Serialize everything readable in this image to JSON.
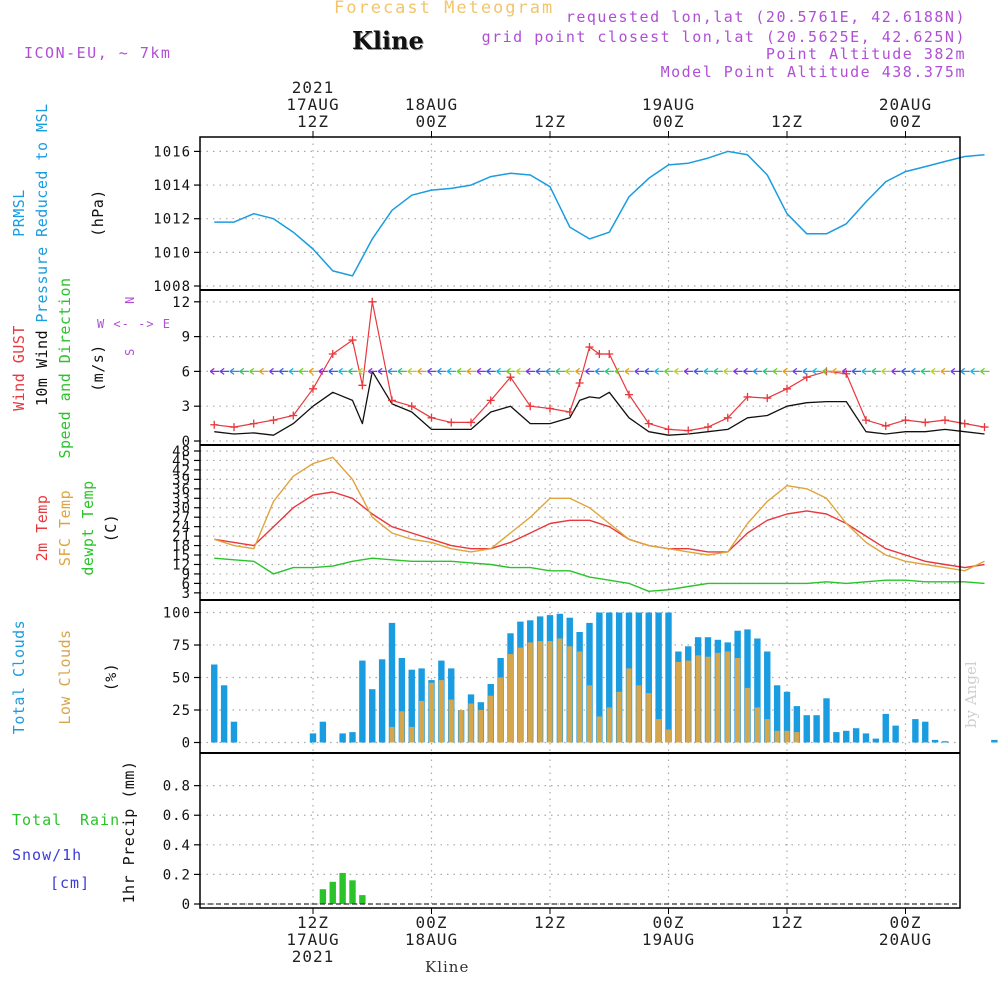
{
  "header": {
    "title": "Forecast Meteogram",
    "location": "Kline",
    "model": "ICON-EU, ~ 7km",
    "requested": "requested lon,lat (20.5761E, 42.6188N)",
    "gridpoint": "grid point closest lon,lat (20.5625E, 42.625N)",
    "point_alt": "Point Altitude 382m",
    "model_alt": "Model Point Altitude 438.375m"
  },
  "footer": {
    "location": "Kline",
    "watermark": "by Angel"
  },
  "colors": {
    "pressure": "#1a9ce0",
    "gust": "#e8383d",
    "wind10": "#111111",
    "temp2m": "#e8383d",
    "sfc": "#e0a43c",
    "dewpt": "#2ac42a",
    "total_clouds": "#1a9ce0",
    "low_clouds": "#d6a64d",
    "rain": "#2ac42a",
    "snow": "#3b3bdc"
  },
  "chart_data": [
    {
      "type": "line",
      "panel": "pressure",
      "ylabel": [
        "PRMSL",
        "Pressure Reduced to MSL",
        "(hPa)"
      ],
      "ylim": [
        1008,
        1016.5
      ],
      "yticks": [
        1008,
        1010,
        1012,
        1014,
        1016
      ],
      "time_axis": {
        "start": "2021-08-17T02Z",
        "end": "2021-08-20T08Z",
        "top_labels": [
          [
            "2021",
            "17AUG",
            "12Z"
          ],
          [
            "",
            "18AUG",
            "00Z"
          ],
          [
            "",
            "",
            "12Z"
          ],
          [
            "",
            "19AUG",
            "00Z"
          ],
          [
            "",
            "",
            "12Z"
          ],
          [
            "",
            "20AUG",
            "00Z"
          ]
        ],
        "bottom_labels": [
          [
            "12Z",
            "17AUG",
            "2021"
          ],
          [
            "00Z",
            "18AUG",
            ""
          ],
          [
            "12Z",
            "",
            ""
          ],
          [
            "00Z",
            "19AUG",
            ""
          ],
          [
            "12Z",
            "",
            ""
          ],
          [
            "00Z",
            "20AUG",
            ""
          ]
        ]
      },
      "series": [
        {
          "name": "PRMSL",
          "x": [
            "17AUG 02Z",
            "17AUG 04Z",
            "17AUG 06Z",
            "17AUG 08Z",
            "17AUG 10Z",
            "17AUG 12Z",
            "17AUG 14Z",
            "17AUG 16Z",
            "17AUG 18Z",
            "17AUG 20Z",
            "17AUG 22Z",
            "18AUG 00Z",
            "18AUG 02Z",
            "18AUG 04Z",
            "18AUG 06Z",
            "18AUG 08Z",
            "18AUG 10Z",
            "18AUG 12Z",
            "18AUG 14Z",
            "18AUG 16Z",
            "18AUG 18Z",
            "18AUG 20Z",
            "18AUG 22Z",
            "19AUG 00Z",
            "19AUG 02Z",
            "19AUG 04Z",
            "19AUG 06Z",
            "19AUG 08Z",
            "19AUG 10Z",
            "19AUG 12Z",
            "19AUG 14Z",
            "19AUG 16Z",
            "19AUG 18Z",
            "19AUG 20Z",
            "19AUG 22Z",
            "20AUG 00Z",
            "20AUG 02Z",
            "20AUG 04Z",
            "20AUG 06Z",
            "20AUG 08Z"
          ],
          "values": [
            1011.8,
            1011.8,
            1012.3,
            1012,
            1011.2,
            1010.2,
            1008.9,
            1008.6,
            1010.8,
            1012.5,
            1013.4,
            1013.7,
            1013.8,
            1014,
            1014.5,
            1014.7,
            1014.6,
            1013.9,
            1011.5,
            1010.8,
            1011.2,
            1013.3,
            1014.4,
            1015.2,
            1015.3,
            1015.6,
            1016,
            1015.8,
            1014.6,
            1012.3,
            1011.1,
            1011.1,
            1011.7,
            1013,
            1014.2,
            1014.8,
            1015.1,
            1015.4,
            1015.7,
            1015.8
          ]
        }
      ]
    },
    {
      "type": "line",
      "panel": "wind",
      "ylabel": [
        "Wind GUST",
        "10m Wind",
        "Speed and Direction",
        "(m/s)"
      ],
      "compass": [
        "N",
        "W <- -> E",
        "S"
      ],
      "ylim": [
        0,
        12.5
      ],
      "yticks": [
        0,
        3,
        6,
        9,
        12
      ],
      "series": [
        {
          "name": "Wind GUST",
          "x_hours": [
            0,
            2,
            4,
            6,
            8,
            10,
            12,
            14,
            15,
            16,
            18,
            20,
            22,
            24,
            26,
            28,
            30,
            32,
            34,
            36,
            37,
            38,
            39,
            40,
            42,
            44,
            46,
            48,
            50,
            52,
            54,
            56,
            58,
            60,
            62,
            64,
            66,
            68,
            70,
            72,
            74,
            76,
            78
          ],
          "values": [
            1.4,
            1.2,
            1.5,
            1.8,
            2.2,
            4.5,
            7.5,
            8.7,
            4.8,
            12,
            3.5,
            3,
            2,
            1.6,
            1.6,
            3.5,
            5.5,
            3,
            2.8,
            2.5,
            5,
            8.1,
            7.5,
            7.5,
            4,
            1.5,
            1,
            0.9,
            1.2,
            2,
            3.8,
            3.7,
            4.5,
            5.5,
            6,
            5.8,
            1.8,
            1.3,
            1.8,
            1.6,
            1.8,
            1.5,
            1.2
          ]
        },
        {
          "name": "10m Wind",
          "x_hours": [
            0,
            2,
            4,
            6,
            8,
            10,
            12,
            14,
            15,
            16,
            18,
            20,
            22,
            24,
            26,
            28,
            30,
            32,
            34,
            36,
            37,
            38,
            39,
            40,
            42,
            44,
            46,
            48,
            50,
            52,
            54,
            56,
            58,
            60,
            62,
            64,
            66,
            68,
            70,
            72,
            74,
            76,
            78
          ],
          "values": [
            0.8,
            0.6,
            0.7,
            0.5,
            1.5,
            3,
            4.2,
            3.5,
            1.5,
            6,
            3.2,
            2.5,
            1,
            1,
            1,
            2.5,
            3,
            1.5,
            1.5,
            2,
            3.5,
            3.8,
            3.7,
            4.2,
            2,
            0.8,
            0.5,
            0.6,
            0.8,
            1,
            2,
            2.2,
            3,
            3.3,
            3.4,
            3.4,
            0.8,
            0.6,
            0.8,
            0.8,
            1,
            0.8,
            0.6
          ]
        }
      ]
    },
    {
      "type": "line",
      "panel": "temperature",
      "ylabel": [
        "2m Temp",
        "SFC Temp",
        "dewpt Temp",
        "(C)"
      ],
      "ylim": [
        2,
        48
      ],
      "yticks": [
        3,
        6,
        9,
        12,
        15,
        18,
        21,
        24,
        27,
        30,
        33,
        36,
        39,
        42,
        45,
        48
      ],
      "series": [
        {
          "name": "2m Temp",
          "x_hours": [
            0,
            2,
            4,
            6,
            8,
            10,
            12,
            14,
            16,
            18,
            20,
            22,
            24,
            26,
            28,
            30,
            32,
            34,
            36,
            38,
            40,
            42,
            44,
            46,
            48,
            50,
            52,
            54,
            56,
            58,
            60,
            62,
            64,
            66,
            68,
            70,
            72,
            74,
            76,
            78
          ],
          "values": [
            20,
            19,
            18,
            24,
            30,
            34,
            35,
            33,
            28,
            24,
            22,
            20,
            18,
            17,
            17,
            19,
            22,
            25,
            26,
            26,
            24,
            20,
            18,
            17,
            17,
            16,
            16,
            22,
            26,
            28,
            29,
            28,
            25,
            21,
            17,
            15,
            13,
            12,
            11,
            12
          ]
        },
        {
          "name": "SFC Temp",
          "x_hours": [
            0,
            2,
            4,
            6,
            8,
            10,
            12,
            14,
            16,
            18,
            20,
            22,
            24,
            26,
            28,
            30,
            32,
            34,
            36,
            38,
            40,
            42,
            44,
            46,
            48,
            50,
            52,
            54,
            56,
            58,
            60,
            62,
            64,
            66,
            68,
            70,
            72,
            74,
            76,
            78
          ],
          "values": [
            20,
            18,
            17,
            32,
            40,
            44,
            46,
            39,
            27,
            22,
            20,
            19,
            17,
            16,
            17,
            22,
            27,
            33,
            33,
            30,
            25,
            20,
            18,
            17,
            16,
            15,
            16,
            25,
            32,
            37,
            36,
            33,
            25,
            19,
            15,
            13,
            12,
            11,
            10,
            13
          ]
        },
        {
          "name": "dewpt Temp",
          "x_hours": [
            0,
            2,
            4,
            6,
            8,
            10,
            12,
            14,
            16,
            18,
            20,
            22,
            24,
            26,
            28,
            30,
            32,
            34,
            36,
            38,
            40,
            42,
            44,
            46,
            48,
            50,
            52,
            54,
            56,
            58,
            60,
            62,
            64,
            66,
            68,
            70,
            72,
            74,
            76,
            78
          ],
          "values": [
            14,
            13.5,
            13,
            9,
            11,
            11,
            11.5,
            13,
            14,
            13.5,
            13,
            13,
            13,
            12.5,
            12,
            11,
            11,
            10,
            10,
            8,
            7,
            6,
            3.5,
            4,
            5,
            6,
            6,
            6,
            6,
            6,
            6,
            6.5,
            6,
            6.5,
            7,
            7,
            6.5,
            6.5,
            6.5,
            6
          ]
        }
      ]
    },
    {
      "type": "bar",
      "panel": "clouds",
      "ylabel": [
        "Total Clouds",
        "Low Clouds",
        "(%)"
      ],
      "ylim": [
        -5,
        105
      ],
      "yticks": [
        0,
        25,
        50,
        75,
        100
      ],
      "x_hours_start": 0,
      "step_hours": 1,
      "series": [
        {
          "name": "Total Clouds",
          "values": [
            60,
            44,
            16,
            0,
            0,
            0,
            0,
            0,
            0,
            0,
            7,
            16,
            0,
            7,
            8,
            63,
            41,
            64,
            92,
            65,
            56,
            57,
            48,
            63,
            57,
            25,
            37,
            31,
            45,
            65,
            84,
            93,
            94,
            97,
            98,
            99,
            96,
            85,
            92,
            100,
            100,
            100,
            100,
            100,
            100,
            100,
            100,
            70,
            74,
            81,
            81,
            79,
            77,
            86,
            87,
            80,
            70,
            44,
            39,
            28,
            21,
            21,
            34,
            8,
            9,
            11,
            7,
            3,
            22,
            13,
            0,
            18,
            16,
            2,
            1,
            0,
            0,
            0,
            0,
            2
          ]
        },
        {
          "name": "Low Clouds",
          "values": [
            0,
            0,
            0,
            0,
            0,
            0,
            0,
            0,
            0,
            0,
            0,
            0,
            0,
            0,
            0,
            0,
            0,
            0,
            12,
            24,
            12,
            32,
            46,
            48,
            33,
            25,
            30,
            25,
            36,
            50,
            68,
            73,
            77,
            78,
            78,
            80,
            74,
            70,
            44,
            20,
            27,
            39,
            57,
            44,
            38,
            18,
            10,
            62,
            63,
            67,
            66,
            69,
            70,
            65,
            42,
            27,
            18,
            9,
            9,
            8,
            0,
            0,
            0,
            0,
            0,
            0,
            0,
            0,
            0,
            0,
            0,
            0,
            0,
            0,
            0,
            0,
            0,
            0,
            0,
            0
          ]
        }
      ]
    },
    {
      "type": "bar",
      "panel": "precip",
      "ylabel": [
        "1hr Precip (mm)"
      ],
      "legend": [
        "Total",
        "Rain",
        "Snow/1h",
        "[cm]"
      ],
      "ylim": [
        0,
        0.98
      ],
      "yticks": [
        "0",
        "0.2",
        "0.4",
        "0.6",
        "0.8"
      ],
      "series": [
        {
          "name": "Total Rain",
          "x_hours": [
            11,
            12,
            13,
            14,
            15
          ],
          "values": [
            0.1,
            0.15,
            0.21,
            0.16,
            0.06
          ]
        }
      ]
    }
  ]
}
